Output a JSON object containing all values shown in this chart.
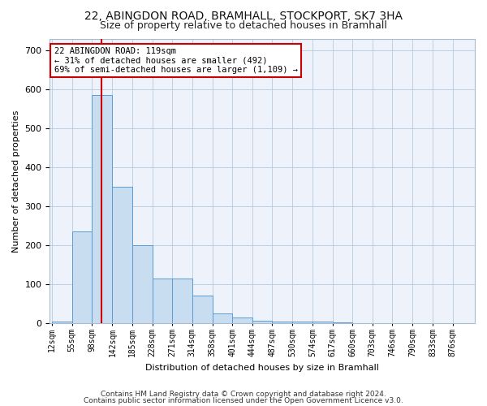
{
  "title1": "22, ABINGDON ROAD, BRAMHALL, STOCKPORT, SK7 3HA",
  "title2": "Size of property relative to detached houses in Bramhall",
  "xlabel": "Distribution of detached houses by size in Bramhall",
  "ylabel": "Number of detached properties",
  "footer1": "Contains HM Land Registry data © Crown copyright and database right 2024.",
  "footer2": "Contains public sector information licensed under the Open Government Licence v3.0.",
  "annotation_title": "22 ABINGDON ROAD: 119sqm",
  "annotation_line1": "← 31% of detached houses are smaller (492)",
  "annotation_line2": "69% of semi-detached houses are larger (1,109) →",
  "property_size": 119,
  "bin_edges": [
    12,
    55,
    98,
    142,
    185,
    228,
    271,
    314,
    358,
    401,
    444,
    487,
    530,
    574,
    617,
    660,
    703,
    746,
    790,
    833,
    876,
    919
  ],
  "bar_heights": [
    5,
    235,
    585,
    350,
    200,
    115,
    115,
    72,
    25,
    15,
    8,
    5,
    5,
    5,
    3,
    0,
    0,
    0,
    0,
    0,
    0
  ],
  "bar_color": "#c9ddf0",
  "bar_edge_color": "#5b9bd5",
  "vline_color": "#cc0000",
  "vline_x": 119,
  "ylim": [
    0,
    730
  ],
  "yticks": [
    0,
    100,
    200,
    300,
    400,
    500,
    600,
    700
  ],
  "background_color": "#eef2fa",
  "annotation_box_facecolor": "#ffffff",
  "annotation_box_edgecolor": "#cc0000",
  "title1_fontsize": 10,
  "title2_fontsize": 9,
  "axis_label_fontsize": 8,
  "tick_fontsize": 7,
  "footer_fontsize": 6.5
}
